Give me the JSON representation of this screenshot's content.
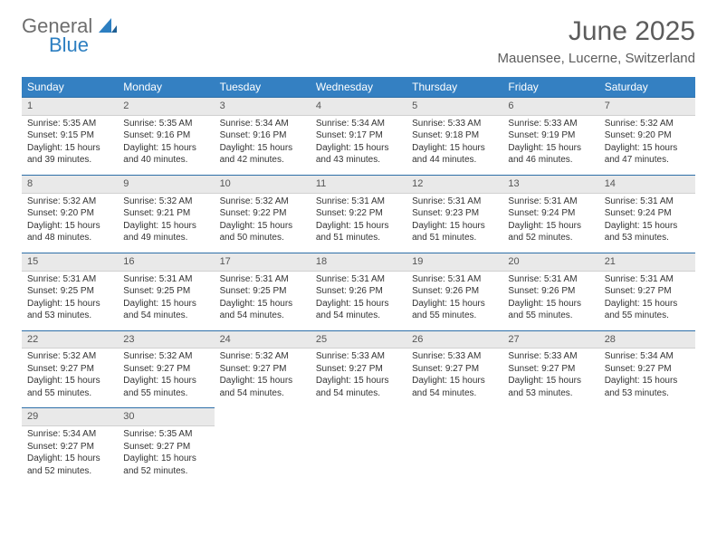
{
  "logo": {
    "general": "General",
    "blue": "Blue"
  },
  "title": "June 2025",
  "location": "Mauensee, Lucerne, Switzerland",
  "colors": {
    "header_bg": "#3480c2",
    "header_text": "#ffffff",
    "daynum_bg": "#e9e9e9",
    "daynum_border_top": "#2d6fa8",
    "body_bg": "#ffffff",
    "text": "#333333",
    "title_text": "#5c5c5c",
    "logo_general": "#6e6e6e",
    "logo_blue": "#2d7fc1"
  },
  "typography": {
    "title_fontsize": 30,
    "location_fontsize": 15,
    "dayheader_fontsize": 12,
    "daynum_fontsize": 11,
    "cell_fontsize": 10
  },
  "calendar": {
    "type": "table",
    "columns": [
      "Sunday",
      "Monday",
      "Tuesday",
      "Wednesday",
      "Thursday",
      "Friday",
      "Saturday"
    ],
    "weeks": [
      [
        {
          "day": "1",
          "sunrise": "Sunrise: 5:35 AM",
          "sunset": "Sunset: 9:15 PM",
          "daylight1": "Daylight: 15 hours",
          "daylight2": "and 39 minutes."
        },
        {
          "day": "2",
          "sunrise": "Sunrise: 5:35 AM",
          "sunset": "Sunset: 9:16 PM",
          "daylight1": "Daylight: 15 hours",
          "daylight2": "and 40 minutes."
        },
        {
          "day": "3",
          "sunrise": "Sunrise: 5:34 AM",
          "sunset": "Sunset: 9:16 PM",
          "daylight1": "Daylight: 15 hours",
          "daylight2": "and 42 minutes."
        },
        {
          "day": "4",
          "sunrise": "Sunrise: 5:34 AM",
          "sunset": "Sunset: 9:17 PM",
          "daylight1": "Daylight: 15 hours",
          "daylight2": "and 43 minutes."
        },
        {
          "day": "5",
          "sunrise": "Sunrise: 5:33 AM",
          "sunset": "Sunset: 9:18 PM",
          "daylight1": "Daylight: 15 hours",
          "daylight2": "and 44 minutes."
        },
        {
          "day": "6",
          "sunrise": "Sunrise: 5:33 AM",
          "sunset": "Sunset: 9:19 PM",
          "daylight1": "Daylight: 15 hours",
          "daylight2": "and 46 minutes."
        },
        {
          "day": "7",
          "sunrise": "Sunrise: 5:32 AM",
          "sunset": "Sunset: 9:20 PM",
          "daylight1": "Daylight: 15 hours",
          "daylight2": "and 47 minutes."
        }
      ],
      [
        {
          "day": "8",
          "sunrise": "Sunrise: 5:32 AM",
          "sunset": "Sunset: 9:20 PM",
          "daylight1": "Daylight: 15 hours",
          "daylight2": "and 48 minutes."
        },
        {
          "day": "9",
          "sunrise": "Sunrise: 5:32 AM",
          "sunset": "Sunset: 9:21 PM",
          "daylight1": "Daylight: 15 hours",
          "daylight2": "and 49 minutes."
        },
        {
          "day": "10",
          "sunrise": "Sunrise: 5:32 AM",
          "sunset": "Sunset: 9:22 PM",
          "daylight1": "Daylight: 15 hours",
          "daylight2": "and 50 minutes."
        },
        {
          "day": "11",
          "sunrise": "Sunrise: 5:31 AM",
          "sunset": "Sunset: 9:22 PM",
          "daylight1": "Daylight: 15 hours",
          "daylight2": "and 51 minutes."
        },
        {
          "day": "12",
          "sunrise": "Sunrise: 5:31 AM",
          "sunset": "Sunset: 9:23 PM",
          "daylight1": "Daylight: 15 hours",
          "daylight2": "and 51 minutes."
        },
        {
          "day": "13",
          "sunrise": "Sunrise: 5:31 AM",
          "sunset": "Sunset: 9:24 PM",
          "daylight1": "Daylight: 15 hours",
          "daylight2": "and 52 minutes."
        },
        {
          "day": "14",
          "sunrise": "Sunrise: 5:31 AM",
          "sunset": "Sunset: 9:24 PM",
          "daylight1": "Daylight: 15 hours",
          "daylight2": "and 53 minutes."
        }
      ],
      [
        {
          "day": "15",
          "sunrise": "Sunrise: 5:31 AM",
          "sunset": "Sunset: 9:25 PM",
          "daylight1": "Daylight: 15 hours",
          "daylight2": "and 53 minutes."
        },
        {
          "day": "16",
          "sunrise": "Sunrise: 5:31 AM",
          "sunset": "Sunset: 9:25 PM",
          "daylight1": "Daylight: 15 hours",
          "daylight2": "and 54 minutes."
        },
        {
          "day": "17",
          "sunrise": "Sunrise: 5:31 AM",
          "sunset": "Sunset: 9:25 PM",
          "daylight1": "Daylight: 15 hours",
          "daylight2": "and 54 minutes."
        },
        {
          "day": "18",
          "sunrise": "Sunrise: 5:31 AM",
          "sunset": "Sunset: 9:26 PM",
          "daylight1": "Daylight: 15 hours",
          "daylight2": "and 54 minutes."
        },
        {
          "day": "19",
          "sunrise": "Sunrise: 5:31 AM",
          "sunset": "Sunset: 9:26 PM",
          "daylight1": "Daylight: 15 hours",
          "daylight2": "and 55 minutes."
        },
        {
          "day": "20",
          "sunrise": "Sunrise: 5:31 AM",
          "sunset": "Sunset: 9:26 PM",
          "daylight1": "Daylight: 15 hours",
          "daylight2": "and 55 minutes."
        },
        {
          "day": "21",
          "sunrise": "Sunrise: 5:31 AM",
          "sunset": "Sunset: 9:27 PM",
          "daylight1": "Daylight: 15 hours",
          "daylight2": "and 55 minutes."
        }
      ],
      [
        {
          "day": "22",
          "sunrise": "Sunrise: 5:32 AM",
          "sunset": "Sunset: 9:27 PM",
          "daylight1": "Daylight: 15 hours",
          "daylight2": "and 55 minutes."
        },
        {
          "day": "23",
          "sunrise": "Sunrise: 5:32 AM",
          "sunset": "Sunset: 9:27 PM",
          "daylight1": "Daylight: 15 hours",
          "daylight2": "and 55 minutes."
        },
        {
          "day": "24",
          "sunrise": "Sunrise: 5:32 AM",
          "sunset": "Sunset: 9:27 PM",
          "daylight1": "Daylight: 15 hours",
          "daylight2": "and 54 minutes."
        },
        {
          "day": "25",
          "sunrise": "Sunrise: 5:33 AM",
          "sunset": "Sunset: 9:27 PM",
          "daylight1": "Daylight: 15 hours",
          "daylight2": "and 54 minutes."
        },
        {
          "day": "26",
          "sunrise": "Sunrise: 5:33 AM",
          "sunset": "Sunset: 9:27 PM",
          "daylight1": "Daylight: 15 hours",
          "daylight2": "and 54 minutes."
        },
        {
          "day": "27",
          "sunrise": "Sunrise: 5:33 AM",
          "sunset": "Sunset: 9:27 PM",
          "daylight1": "Daylight: 15 hours",
          "daylight2": "and 53 minutes."
        },
        {
          "day": "28",
          "sunrise": "Sunrise: 5:34 AM",
          "sunset": "Sunset: 9:27 PM",
          "daylight1": "Daylight: 15 hours",
          "daylight2": "and 53 minutes."
        }
      ],
      [
        {
          "day": "29",
          "sunrise": "Sunrise: 5:34 AM",
          "sunset": "Sunset: 9:27 PM",
          "daylight1": "Daylight: 15 hours",
          "daylight2": "and 52 minutes."
        },
        {
          "day": "30",
          "sunrise": "Sunrise: 5:35 AM",
          "sunset": "Sunset: 9:27 PM",
          "daylight1": "Daylight: 15 hours",
          "daylight2": "and 52 minutes."
        },
        null,
        null,
        null,
        null,
        null
      ]
    ]
  }
}
